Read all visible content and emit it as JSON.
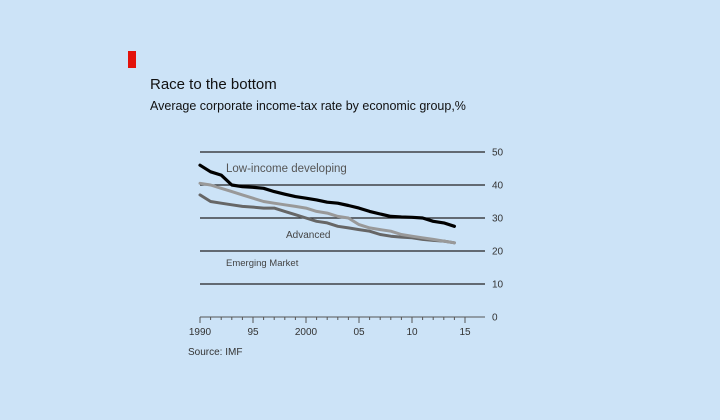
{
  "colors": {
    "background": "#cce3f7",
    "accent": "#e3120b",
    "low_income": "#000000",
    "advanced": "#666666",
    "emerging": "#999999",
    "axis": "#333333"
  },
  "title": "Race to the bottom",
  "subtitle": "Average corporate income-tax rate by economic group,%",
  "source": "Source: IMF",
  "chart_data": {
    "type": "line",
    "title": "Race to the bottom",
    "subtitle": "Average corporate income-tax rate by economic group,%",
    "xlabel": "",
    "ylabel": "",
    "xlim": [
      1990,
      2015
    ],
    "ylim": [
      0,
      50
    ],
    "x_ticks": [
      1990,
      1995,
      2000,
      2005,
      2010,
      2015
    ],
    "x_tick_labels": [
      "1990",
      "95",
      "2000",
      "05",
      "10",
      "15"
    ],
    "y_ticks": [
      0,
      10,
      20,
      30,
      40,
      50
    ],
    "y_tick_labels": [
      "0",
      "10",
      "20",
      "30",
      "40",
      "50"
    ],
    "grid": true,
    "y_axis_side": "right",
    "x": [
      1990,
      1991,
      1992,
      1993,
      1994,
      1995,
      1996,
      1997,
      1998,
      1999,
      2000,
      2001,
      2002,
      2003,
      2004,
      2005,
      2006,
      2007,
      2008,
      2009,
      2010,
      2011,
      2012,
      2013,
      2014,
      2015
    ],
    "series": [
      {
        "name": "Low-income developing",
        "color": "#000000",
        "values": [
          46,
          44,
          43,
          40,
          39.5,
          39.3,
          39,
          38,
          37.2,
          36.5,
          36,
          35.5,
          34.8,
          34.5,
          33.8,
          33,
          32,
          31.2,
          30.5,
          30.3,
          30.2,
          30,
          29,
          28.5,
          27.5,
          null
        ]
      },
      {
        "name": "Advanced",
        "color": "#666666",
        "values": [
          37,
          35,
          34.5,
          34,
          33.5,
          33.3,
          33,
          33,
          32,
          31,
          30,
          29,
          28.5,
          27.5,
          27,
          26.5,
          26,
          25,
          24.5,
          24.2,
          24,
          23.5,
          23.2,
          23,
          22.5,
          null
        ]
      },
      {
        "name": "Emerging Market",
        "color": "#999999",
        "values": [
          40.5,
          40,
          39,
          38,
          37,
          36,
          35,
          34.5,
          34,
          33.5,
          33,
          32,
          31.5,
          30.5,
          30,
          28,
          27,
          26.5,
          26,
          25,
          24.5,
          24,
          23.5,
          23,
          22.5,
          null
        ]
      }
    ],
    "annotations": [
      {
        "text": "Low-income developing"
      },
      {
        "text": "Advanced"
      },
      {
        "text": "Emerging Market"
      }
    ]
  }
}
